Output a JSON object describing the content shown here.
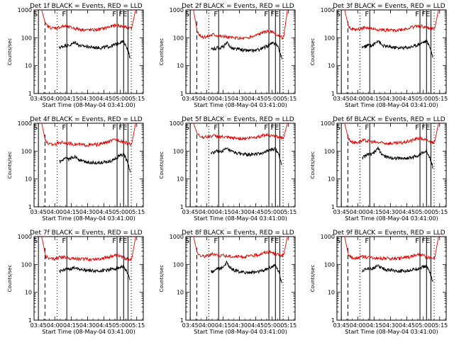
{
  "chart_data": [
    {
      "type": "line",
      "title": "Det 1f BLACK = Events, RED = LLD",
      "xlabel": "Start Time (08-May-04 03:41:00)",
      "ylabel": "Counts/sec",
      "xticks": [
        "03:45",
        "04:00",
        "04:15",
        "04:30",
        "04:45",
        "05:00",
        "05:15"
      ],
      "xlim_min": [
        0,
        100
      ],
      "yscale": "log",
      "ylim": [
        1,
        1000
      ],
      "yticks": [
        "1",
        "10",
        "100",
        "1000"
      ],
      "dashed_line_min": 10,
      "dotted_lines_min": [
        21,
        89
      ],
      "flag_markers": [
        {
          "label": "S",
          "t": 4
        },
        {
          "label": "F",
          "t": 30
        },
        {
          "label": "F",
          "t": 76
        },
        {
          "label": "F",
          "t": 82
        },
        {
          "label": "E",
          "t": 86
        }
      ],
      "series": [
        {
          "name": "BLACK = Events",
          "color": "#000000",
          "t_start": 23,
          "t_end": 88,
          "values": [
            45,
            48,
            55,
            52,
            60,
            70,
            55,
            50,
            50,
            48,
            46,
            45,
            45,
            44,
            46,
            48,
            50,
            55,
            62,
            70,
            72,
            45,
            20
          ]
        },
        {
          "name": "RED = LLD",
          "color": "#dd0000",
          "t_start": 7,
          "t_end": 93,
          "values": [
            1000,
            300,
            240,
            220,
            230,
            250,
            260,
            240,
            225,
            210,
            200,
            195,
            190,
            190,
            195,
            205,
            220,
            240,
            260,
            280,
            270,
            250,
            230,
            230,
            1000
          ]
        }
      ]
    },
    {
      "type": "line",
      "title": "Det 2f BLACK = Events, RED = LLD",
      "xlabel": "Start Time (08-May-04 03:41:00)",
      "ylabel": "Counts/sec",
      "xticks": [
        "03:45",
        "04:00",
        "04:15",
        "04:30",
        "04:45",
        "05:00",
        "05:15"
      ],
      "xlim_min": [
        0,
        100
      ],
      "yscale": "log",
      "ylim": [
        1,
        1000
      ],
      "yticks": [
        "1",
        "10",
        "100",
        "1000"
      ],
      "dashed_line_min": 10,
      "dotted_lines_min": [
        21,
        89
      ],
      "flag_markers": [
        {
          "label": "S",
          "t": 4
        },
        {
          "label": "F",
          "t": 30
        },
        {
          "label": "F",
          "t": 76
        },
        {
          "label": "F",
          "t": 82
        },
        {
          "label": "E",
          "t": 86
        }
      ],
      "series": [
        {
          "name": "BLACK = Events",
          "color": "#000000",
          "t_start": 23,
          "t_end": 88,
          "values": [
            38,
            40,
            45,
            43,
            50,
            65,
            48,
            40,
            40,
            38,
            36,
            35,
            35,
            34,
            36,
            38,
            42,
            48,
            55,
            62,
            66,
            40,
            18
          ]
        },
        {
          "name": "RED = LLD",
          "color": "#dd0000",
          "t_start": 7,
          "t_end": 93,
          "values": [
            1000,
            150,
            110,
            105,
            120,
            135,
            125,
            115,
            110,
            105,
            100,
            98,
            96,
            97,
            100,
            110,
            125,
            145,
            160,
            170,
            160,
            130,
            110,
            100,
            1000
          ]
        }
      ]
    },
    {
      "type": "line",
      "title": "Det 3f BLACK = Events, RED = LLD",
      "xlabel": "Start Time (08-May-04 03:41:00)",
      "ylabel": "Counts/sec",
      "xticks": [
        "03:45",
        "04:00",
        "04:15",
        "04:30",
        "04:45",
        "05:00",
        "05:15"
      ],
      "xlim_min": [
        0,
        100
      ],
      "yscale": "log",
      "ylim": [
        1,
        1000
      ],
      "yticks": [
        "1",
        "10",
        "100",
        "1000"
      ],
      "dashed_line_min": 10,
      "dotted_lines_min": [
        21,
        89
      ],
      "flag_markers": [
        {
          "label": "S",
          "t": 4
        },
        {
          "label": "F",
          "t": 30
        },
        {
          "label": "F",
          "t": 76
        },
        {
          "label": "F",
          "t": 82
        },
        {
          "label": "E",
          "t": 86
        }
      ],
      "series": [
        {
          "name": "BLACK = Events",
          "color": "#000000",
          "t_start": 23,
          "t_end": 88,
          "values": [
            45,
            48,
            55,
            52,
            62,
            85,
            55,
            50,
            48,
            46,
            45,
            44,
            44,
            44,
            45,
            47,
            50,
            55,
            62,
            70,
            75,
            48,
            20
          ]
        },
        {
          "name": "RED = LLD",
          "color": "#dd0000",
          "t_start": 7,
          "t_end": 93,
          "values": [
            1000,
            260,
            200,
            195,
            210,
            230,
            220,
            210,
            200,
            195,
            190,
            188,
            186,
            188,
            192,
            200,
            215,
            235,
            255,
            270,
            255,
            230,
            210,
            210,
            1000
          ]
        }
      ]
    },
    {
      "type": "line",
      "title": "Det 4f BLACK = Events, RED = LLD",
      "xlabel": "Start Time (08-May-04 03:41:00)",
      "ylabel": "Counts/sec",
      "xticks": [
        "03:45",
        "04:00",
        "04:15",
        "04:30",
        "04:45",
        "05:00",
        "05:15"
      ],
      "xlim_min": [
        0,
        100
      ],
      "yscale": "log",
      "ylim": [
        1,
        1000
      ],
      "yticks": [
        "1",
        "10",
        "100",
        "1000"
      ],
      "dashed_line_min": 10,
      "dotted_lines_min": [
        21,
        89
      ],
      "flag_markers": [
        {
          "label": "S",
          "t": 4
        },
        {
          "label": "F",
          "t": 30
        },
        {
          "label": "F",
          "t": 76
        },
        {
          "label": "F",
          "t": 82
        },
        {
          "label": "E",
          "t": 86
        }
      ],
      "series": [
        {
          "name": "BLACK = Events",
          "color": "#000000",
          "t_start": 23,
          "t_end": 88,
          "values": [
            40,
            45,
            55,
            50,
            60,
            65,
            50,
            45,
            42,
            40,
            40,
            38,
            38,
            38,
            40,
            42,
            45,
            52,
            60,
            70,
            78,
            45,
            18
          ]
        },
        {
          "name": "RED = LLD",
          "color": "#dd0000",
          "t_start": 7,
          "t_end": 93,
          "values": [
            1000,
            220,
            180,
            175,
            190,
            210,
            200,
            190,
            180,
            175,
            170,
            168,
            166,
            168,
            172,
            180,
            195,
            215,
            240,
            260,
            245,
            215,
            190,
            180,
            1000
          ]
        }
      ]
    },
    {
      "type": "line",
      "title": "Det 5f BLACK = Events, RED = LLD",
      "xlabel": "Start Time (08-May-04 03:41:00)",
      "ylabel": "Counts/sec",
      "xticks": [
        "03:45",
        "04:00",
        "04:15",
        "04:30",
        "04:45",
        "05:00",
        "05:15"
      ],
      "xlim_min": [
        0,
        100
      ],
      "yscale": "log",
      "ylim": [
        1,
        1000
      ],
      "yticks": [
        "1",
        "10",
        "100",
        "1000"
      ],
      "dashed_line_min": 10,
      "dotted_lines_min": [
        21,
        89
      ],
      "flag_markers": [
        {
          "label": "S",
          "t": 4
        },
        {
          "label": "F",
          "t": 30
        },
        {
          "label": "F",
          "t": 76
        },
        {
          "label": "F",
          "t": 82
        },
        {
          "label": "E",
          "t": 86
        }
      ],
      "series": [
        {
          "name": "BLACK = Events",
          "color": "#000000",
          "t_start": 23,
          "t_end": 88,
          "values": [
            85,
            90,
            100,
            95,
            110,
            120,
            100,
            90,
            85,
            80,
            78,
            76,
            76,
            76,
            78,
            82,
            88,
            95,
            105,
            115,
            120,
            80,
            30
          ]
        },
        {
          "name": "RED = LLD",
          "color": "#dd0000",
          "t_start": 7,
          "t_end": 93,
          "values": [
            1000,
            400,
            330,
            320,
            340,
            360,
            345,
            330,
            315,
            305,
            295,
            290,
            288,
            290,
            296,
            308,
            325,
            345,
            370,
            390,
            370,
            340,
            310,
            300,
            1000
          ]
        }
      ]
    },
    {
      "type": "line",
      "title": "Det 6f BLACK = Events, RED = LLD",
      "xlabel": "Start Time (08-May-04 03:41:00)",
      "ylabel": "Counts/sec",
      "xticks": [
        "03:45",
        "04:00",
        "04:15",
        "04:30",
        "04:45",
        "05:00",
        "05:15"
      ],
      "xlim_min": [
        0,
        100
      ],
      "yscale": "log",
      "ylim": [
        1,
        1000
      ],
      "yticks": [
        "1",
        "10",
        "100",
        "1000"
      ],
      "dashed_line_min": 10,
      "dotted_lines_min": [
        21,
        89
      ],
      "flag_markers": [
        {
          "label": "S",
          "t": 4
        },
        {
          "label": "F",
          "t": 30
        },
        {
          "label": "F",
          "t": 76
        },
        {
          "label": "F",
          "t": 82
        },
        {
          "label": "E",
          "t": 86
        }
      ],
      "series": [
        {
          "name": "BLACK = Events",
          "color": "#000000",
          "t_start": 23,
          "t_end": 88,
          "values": [
            60,
            65,
            80,
            75,
            95,
            130,
            80,
            65,
            60,
            58,
            56,
            55,
            55,
            55,
            56,
            58,
            62,
            68,
            78,
            90,
            100,
            60,
            25
          ]
        },
        {
          "name": "RED = LLD",
          "color": "#dd0000",
          "t_start": 7,
          "t_end": 93,
          "values": [
            1000,
            270,
            210,
            205,
            220,
            245,
            230,
            215,
            205,
            200,
            195,
            192,
            190,
            192,
            196,
            205,
            220,
            240,
            265,
            290,
            275,
            240,
            215,
            210,
            1000
          ]
        }
      ]
    },
    {
      "type": "line",
      "title": "Det 7f BLACK = Events, RED = LLD",
      "xlabel": "Start Time (08-May-04 03:41:00)",
      "ylabel": "Counts/sec",
      "xticks": [
        "03:45",
        "04:00",
        "04:15",
        "04:30",
        "04:45",
        "05:00",
        "05:15"
      ],
      "xlim_min": [
        0,
        100
      ],
      "yscale": "log",
      "ylim": [
        1,
        1000
      ],
      "yticks": [
        "1",
        "10",
        "100",
        "1000"
      ],
      "dashed_line_min": 10,
      "dotted_lines_min": [
        21,
        89
      ],
      "flag_markers": [
        {
          "label": "S",
          "t": 4
        },
        {
          "label": "F",
          "t": 30
        },
        {
          "label": "F",
          "t": 76
        },
        {
          "label": "F",
          "t": 82
        },
        {
          "label": "E",
          "t": 86
        }
      ],
      "series": [
        {
          "name": "BLACK = Events",
          "color": "#000000",
          "t_start": 23,
          "t_end": 88,
          "values": [
            55,
            60,
            70,
            65,
            72,
            80,
            70,
            66,
            64,
            62,
            60,
            60,
            60,
            60,
            62,
            64,
            66,
            70,
            75,
            80,
            82,
            55,
            25
          ]
        },
        {
          "name": "RED = LLD",
          "color": "#dd0000",
          "t_start": 7,
          "t_end": 93,
          "values": [
            1000,
            200,
            160,
            160,
            170,
            185,
            180,
            172,
            166,
            162,
            158,
            156,
            155,
            156,
            160,
            166,
            175,
            185,
            200,
            210,
            200,
            175,
            160,
            155,
            1000
          ]
        }
      ]
    },
    {
      "type": "line",
      "title": "Det 8f BLACK = Events, RED = LLD",
      "xlabel": "Start Time (08-May-04 03:41:00)",
      "ylabel": "Counts/sec",
      "xticks": [
        "03:45",
        "04:00",
        "04:15",
        "04:30",
        "04:45",
        "05:00",
        "05:15"
      ],
      "xlim_min": [
        0,
        100
      ],
      "yscale": "log",
      "ylim": [
        1,
        1000
      ],
      "yticks": [
        "1",
        "10",
        "100",
        "1000"
      ],
      "dashed_line_min": 10,
      "dotted_lines_min": [
        21,
        89
      ],
      "flag_markers": [
        {
          "label": "S",
          "t": 4
        },
        {
          "label": "F",
          "t": 30
        },
        {
          "label": "F",
          "t": 76
        },
        {
          "label": "F",
          "t": 82
        },
        {
          "label": "E",
          "t": 86
        }
      ],
      "series": [
        {
          "name": "BLACK = Events",
          "color": "#000000",
          "t_start": 23,
          "t_end": 88,
          "values": [
            55,
            60,
            75,
            70,
            90,
            120,
            75,
            62,
            58,
            55,
            53,
            52,
            52,
            52,
            54,
            56,
            60,
            66,
            75,
            85,
            95,
            55,
            22
          ]
        },
        {
          "name": "RED = LLD",
          "color": "#dd0000",
          "t_start": 7,
          "t_end": 93,
          "values": [
            1000,
            250,
            200,
            200,
            215,
            240,
            225,
            212,
            204,
            198,
            193,
            190,
            188,
            190,
            195,
            203,
            218,
            238,
            262,
            285,
            270,
            240,
            215,
            210,
            1000
          ]
        }
      ]
    },
    {
      "type": "line",
      "title": "Det 9f BLACK = Events, RED = LLD",
      "xlabel": "Start Time (08-May-04 03:41:00)",
      "ylabel": "Counts/sec",
      "xticks": [
        "03:45",
        "04:00",
        "04:15",
        "04:30",
        "04:45",
        "05:00",
        "05:15"
      ],
      "xlim_min": [
        0,
        100
      ],
      "yscale": "log",
      "ylim": [
        1,
        1000
      ],
      "yticks": [
        "1",
        "10",
        "100",
        "1000"
      ],
      "dashed_line_min": 10,
      "dotted_lines_min": [
        21,
        89
      ],
      "flag_markers": [
        {
          "label": "S",
          "t": 4
        },
        {
          "label": "F",
          "t": 30
        },
        {
          "label": "F",
          "t": 76
        },
        {
          "label": "F",
          "t": 82
        },
        {
          "label": "E",
          "t": 86
        }
      ],
      "series": [
        {
          "name": "BLACK = Events",
          "color": "#000000",
          "t_start": 23,
          "t_end": 88,
          "values": [
            60,
            65,
            75,
            70,
            80,
            90,
            75,
            68,
            64,
            62,
            60,
            59,
            59,
            59,
            60,
            63,
            66,
            70,
            76,
            82,
            85,
            55,
            22
          ]
        },
        {
          "name": "RED = LLD",
          "color": "#dd0000",
          "t_start": 7,
          "t_end": 93,
          "values": [
            1000,
            210,
            175,
            172,
            182,
            196,
            188,
            180,
            174,
            170,
            166,
            164,
            162,
            164,
            168,
            174,
            183,
            195,
            210,
            222,
            210,
            185,
            170,
            165,
            1000
          ]
        }
      ]
    }
  ]
}
